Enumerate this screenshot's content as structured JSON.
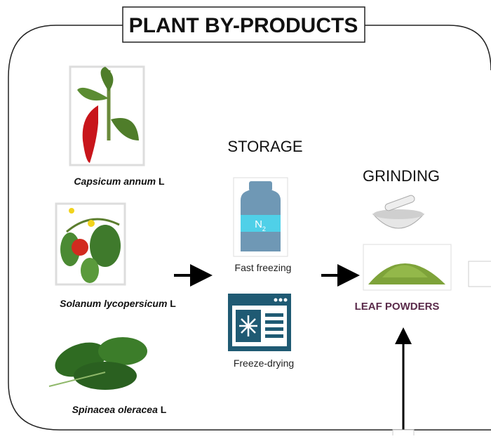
{
  "title": "PLANT BY-PRODUCTS",
  "plants": [
    {
      "name": "Capsicum annum",
      "authority": "L"
    },
    {
      "name": "Solanum lycopersicum",
      "authority": "L"
    },
    {
      "name": "Spinacea oleracea",
      "authority": "L"
    }
  ],
  "storage": {
    "title": "STORAGE",
    "methods": [
      {
        "label": "Fast freezing",
        "tank_label": {
          "base": "N",
          "sub": "2"
        }
      },
      {
        "label": "Freeze-drying"
      }
    ]
  },
  "grinding": {
    "title": "GRINDING",
    "product": "LEAF POWDERS"
  }
}
